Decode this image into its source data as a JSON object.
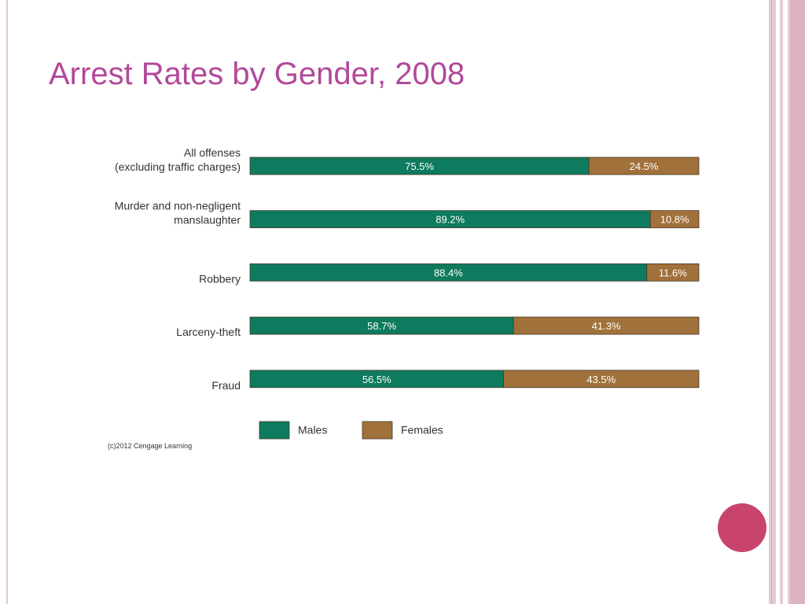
{
  "slide": {
    "title": "Arrest Rates by Gender, 2008",
    "accent_color": "#b2489a",
    "decor_circle_color": "#c8446d",
    "border_colors": [
      "#e3c6d1",
      "#d9aebe"
    ]
  },
  "chart_data": {
    "type": "bar",
    "stacked": true,
    "orientation": "horizontal",
    "title": "",
    "categories": [
      [
        "All offenses",
        "(excluding traffic charges)"
      ],
      [
        "Murder and non-negligent",
        "manslaughter"
      ],
      [
        "Robbery"
      ],
      [
        "Larceny-theft"
      ],
      [
        "Fraud"
      ]
    ],
    "series": [
      {
        "name": "Males",
        "color": "#0e7a5e",
        "values": [
          75.5,
          89.2,
          88.4,
          58.7,
          56.5
        ]
      },
      {
        "name": "Females",
        "color": "#a0713a",
        "values": [
          24.5,
          10.8,
          11.6,
          41.3,
          43.5
        ]
      }
    ],
    "value_suffix": "%",
    "xlim": [
      0,
      100
    ],
    "grid": false,
    "legend_position": "bottom",
    "source": "(c)2012 Cengage Learning"
  }
}
